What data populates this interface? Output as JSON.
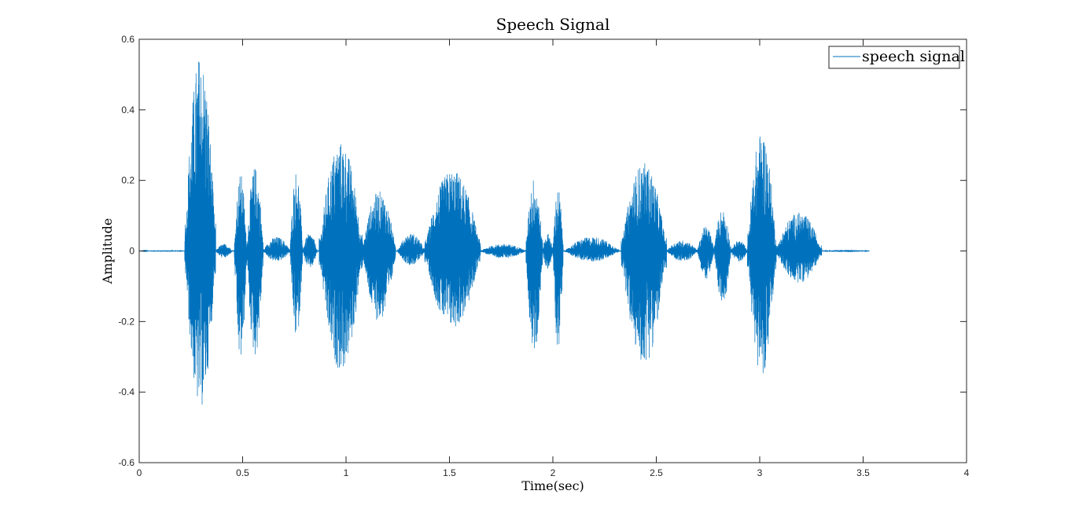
{
  "chart_data": {
    "type": "line",
    "title": "Speech Signal",
    "xlabel": "Time(sec)",
    "ylabel": "Amplitude",
    "xlim": [
      0,
      4
    ],
    "ylim": [
      -0.6,
      0.6
    ],
    "xticks": [
      "0",
      "0.5",
      "1",
      "1.5",
      "2",
      "2.5",
      "3",
      "3.5",
      "4"
    ],
    "yticks": [
      "0.6",
      "0.4",
      "0.2",
      "0",
      "-0.2",
      "-0.4",
      "-0.6"
    ],
    "grid": false,
    "legend_position": "top-right",
    "series": [
      {
        "name": "speech signal",
        "color": "#0072BD",
        "duration": 3.53,
        "envelope": [
          {
            "t0": 0.0,
            "t1": 0.22,
            "pos": 0.002,
            "neg": 0.002
          },
          {
            "t0": 0.22,
            "t1": 0.37,
            "pos": 0.56,
            "neg": 0.45
          },
          {
            "t0": 0.37,
            "t1": 0.45,
            "pos": 0.02,
            "neg": 0.02
          },
          {
            "t0": 0.46,
            "t1": 0.52,
            "pos": 0.22,
            "neg": 0.32
          },
          {
            "t0": 0.52,
            "t1": 0.6,
            "pos": 0.24,
            "neg": 0.3
          },
          {
            "t0": 0.6,
            "t1": 0.73,
            "pos": 0.04,
            "neg": 0.03
          },
          {
            "t0": 0.73,
            "t1": 0.79,
            "pos": 0.23,
            "neg": 0.25
          },
          {
            "t0": 0.79,
            "t1": 0.86,
            "pos": 0.05,
            "neg": 0.05
          },
          {
            "t0": 0.87,
            "t1": 1.08,
            "pos": 0.31,
            "neg": 0.34
          },
          {
            "t0": 1.08,
            "t1": 1.24,
            "pos": 0.17,
            "neg": 0.2
          },
          {
            "t0": 1.25,
            "t1": 1.38,
            "pos": 0.05,
            "neg": 0.04
          },
          {
            "t0": 1.38,
            "t1": 1.65,
            "pos": 0.23,
            "neg": 0.22
          },
          {
            "t0": 1.65,
            "t1": 1.87,
            "pos": 0.02,
            "neg": 0.02
          },
          {
            "t0": 1.87,
            "t1": 1.95,
            "pos": 0.21,
            "neg": 0.29
          },
          {
            "t0": 1.95,
            "t1": 2.0,
            "pos": 0.05,
            "neg": 0.05
          },
          {
            "t0": 2.0,
            "t1": 2.05,
            "pos": 0.18,
            "neg": 0.28
          },
          {
            "t0": 2.06,
            "t1": 2.32,
            "pos": 0.04,
            "neg": 0.03
          },
          {
            "t0": 2.33,
            "t1": 2.55,
            "pos": 0.25,
            "neg": 0.32
          },
          {
            "t0": 2.55,
            "t1": 2.7,
            "pos": 0.03,
            "neg": 0.03
          },
          {
            "t0": 2.7,
            "t1": 2.78,
            "pos": 0.07,
            "neg": 0.08
          },
          {
            "t0": 2.78,
            "t1": 2.86,
            "pos": 0.12,
            "neg": 0.15
          },
          {
            "t0": 2.86,
            "t1": 2.94,
            "pos": 0.03,
            "neg": 0.03
          },
          {
            "t0": 2.94,
            "t1": 3.08,
            "pos": 0.34,
            "neg": 0.35
          },
          {
            "t0": 3.08,
            "t1": 3.3,
            "pos": 0.11,
            "neg": 0.09
          },
          {
            "t0": 3.3,
            "t1": 3.53,
            "pos": 0.003,
            "neg": 0.003
          }
        ]
      }
    ]
  }
}
